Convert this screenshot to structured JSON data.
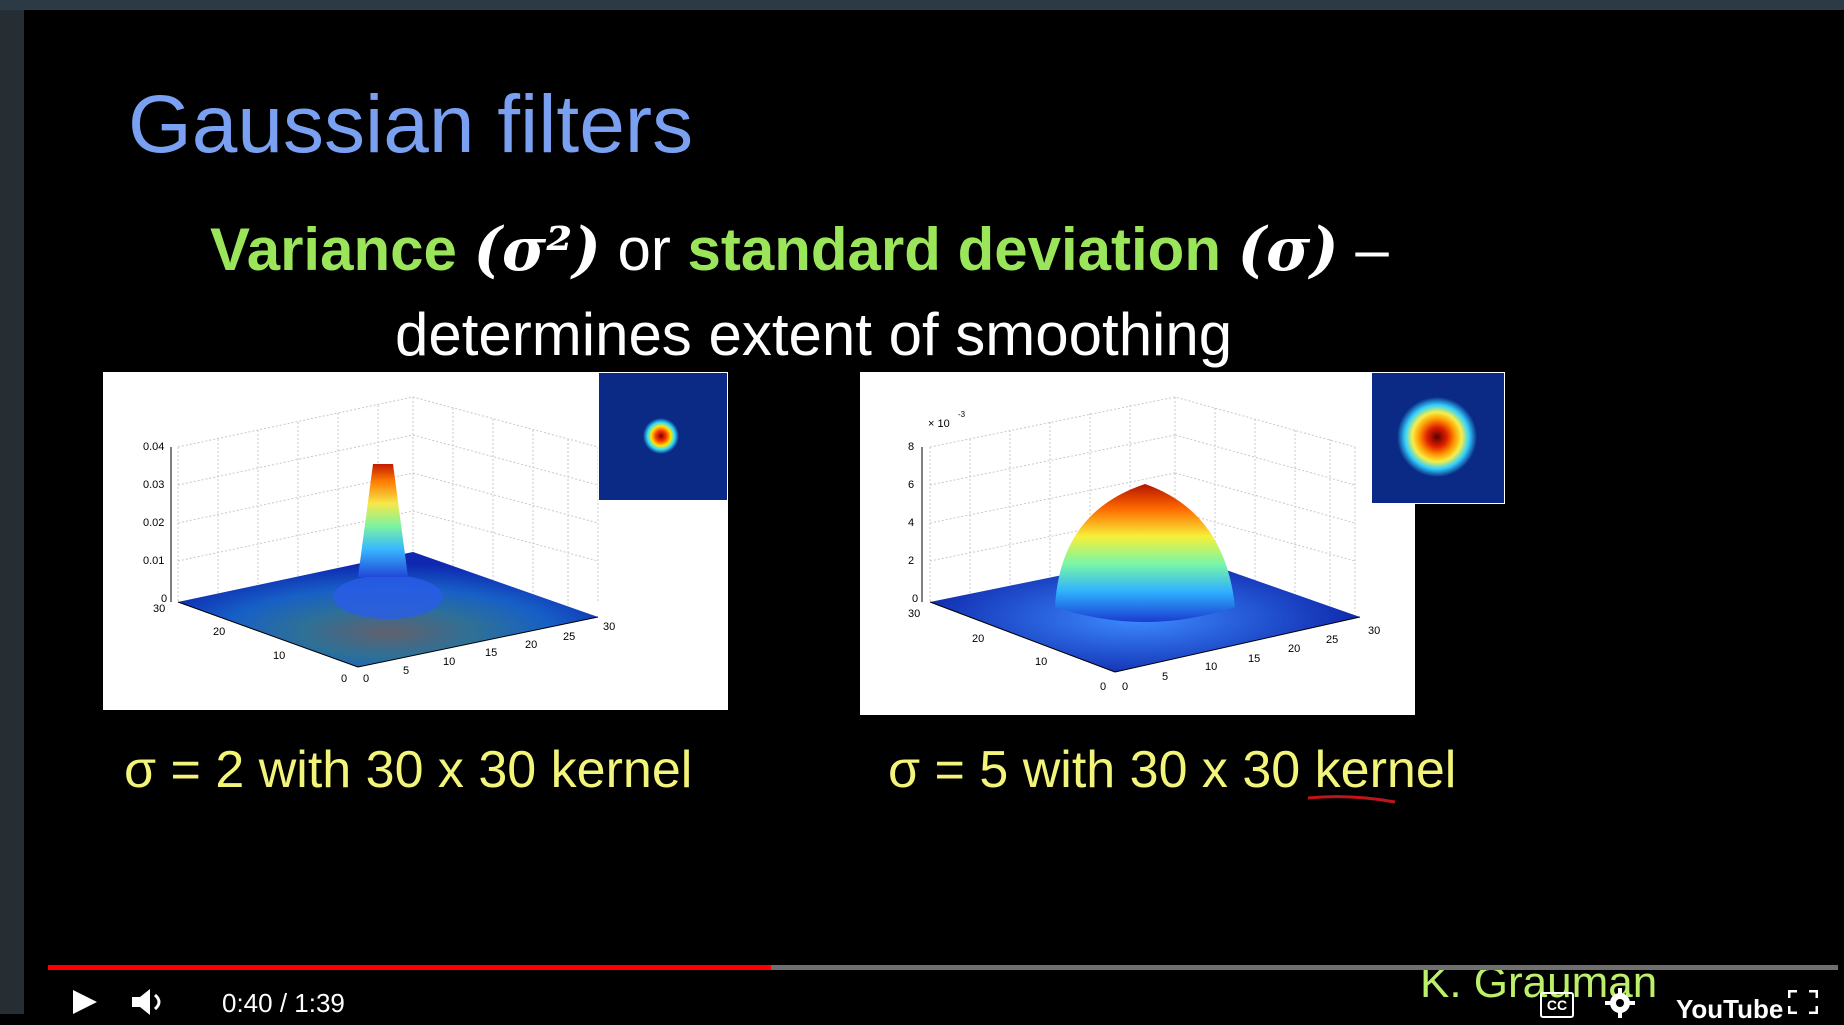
{
  "slide": {
    "title": "Gaussian filters",
    "line1": {
      "variance": "Variance",
      "sigma_sq": "(σ²)",
      "or": " or ",
      "std": "standard deviation",
      "sigma": "(σ)",
      "dash": " –"
    },
    "line2": "determines extent of smoothing",
    "captions": [
      "σ = 2 with 30 x 30 kernel",
      "σ = 5 with 30 x 30 kernel"
    ],
    "credit": "K. Grauman",
    "plot_left": {
      "z_ticks": [
        "0.04",
        "0.03",
        "0.02",
        "0.01",
        "0"
      ],
      "x_ticks": [
        "0",
        "5",
        "10",
        "15",
        "20",
        "25",
        "30"
      ],
      "y_ticks": [
        "30",
        "20",
        "10",
        "0"
      ]
    },
    "plot_right": {
      "z_ticks": [
        "8",
        "6",
        "4",
        "2",
        "0"
      ],
      "z_multiplier": "× 10",
      "z_exponent": "-3",
      "x_ticks": [
        "0",
        "5",
        "10",
        "15",
        "20",
        "25",
        "30"
      ],
      "y_ticks": [
        "30",
        "20",
        "10",
        "0"
      ]
    }
  },
  "player": {
    "time": "0:40 / 1:39",
    "progress_fraction": 0.404,
    "play_icon": "play-icon",
    "volume_icon": "volume-icon",
    "cc_label": "CC",
    "settings_icon": "gear-icon",
    "brand": "YouTube",
    "fullscreen_icon": "fullscreen-icon"
  },
  "colors": {
    "title": "#7aa0f2",
    "green": "#9be55b",
    "caption": "#f3f57a",
    "progress": "#ff0000"
  }
}
